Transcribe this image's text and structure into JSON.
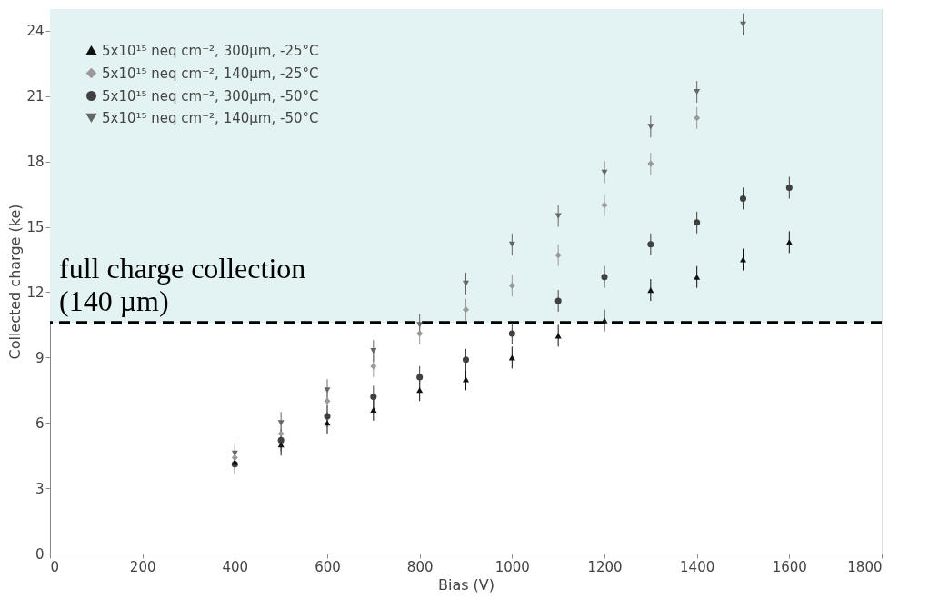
{
  "chart_data": {
    "type": "scatter",
    "xlabel": "Bias (V)",
    "ylabel": "Collected charge (ke)",
    "xlim": [
      0,
      1800
    ],
    "xticks": [
      0,
      200,
      400,
      600,
      800,
      1000,
      1200,
      1400,
      1600,
      1800
    ],
    "ylim": [
      0,
      25
    ],
    "yticks": [
      0,
      3,
      6,
      9,
      12,
      15,
      18,
      21,
      24
    ],
    "grid": false,
    "legend": "top left",
    "series": [
      {
        "name": "5x10¹⁵ neq cm⁻², 300μm, -25°C",
        "color": "#111111",
        "marker": "triangle",
        "x": [
          400,
          500,
          600,
          700,
          800,
          900,
          1000,
          1100,
          1200,
          1300,
          1400,
          1500,
          1600
        ],
        "values": [
          4.2,
          5.0,
          6.0,
          6.6,
          7.5,
          8.0,
          9.0,
          10.0,
          10.7,
          12.1,
          12.7,
          13.5,
          14.3
        ],
        "errors": [
          0.5,
          0.5,
          0.5,
          0.5,
          0.5,
          0.5,
          0.5,
          0.5,
          0.5,
          0.5,
          0.5,
          0.5,
          0.5
        ]
      },
      {
        "name": "5x10¹⁵ neq cm⁻², 140μm, -25°C",
        "color": "#9a9a9a",
        "marker": "diamond",
        "x": [
          400,
          500,
          600,
          700,
          800,
          900,
          1000,
          1100,
          1200,
          1300,
          1400
        ],
        "values": [
          4.4,
          5.5,
          7.0,
          8.6,
          10.1,
          11.2,
          12.3,
          13.7,
          16.0,
          17.9,
          20.0
        ],
        "errors": [
          0.5,
          0.5,
          0.5,
          0.5,
          0.5,
          0.5,
          0.5,
          0.5,
          0.5,
          0.5,
          0.5
        ]
      },
      {
        "name": "5x10¹⁵ neq cm⁻², 300μm, -50°C",
        "color": "#404040",
        "marker": "circle",
        "x": [
          400,
          500,
          600,
          700,
          800,
          900,
          1000,
          1100,
          1200,
          1300,
          1400,
          1500,
          1600
        ],
        "values": [
          4.1,
          5.2,
          6.3,
          7.2,
          8.1,
          8.9,
          10.1,
          11.6,
          12.7,
          14.2,
          15.2,
          16.3,
          16.8
        ],
        "errors": [
          0.5,
          0.5,
          0.5,
          0.5,
          0.5,
          0.5,
          0.5,
          0.5,
          0.5,
          0.5,
          0.5,
          0.5,
          0.5
        ]
      },
      {
        "name": "5x10¹⁵ neq cm⁻², 140μm, -50°C",
        "color": "#666666",
        "marker": "triangle-down",
        "x": [
          400,
          500,
          600,
          700,
          800,
          900,
          1000,
          1100,
          1200,
          1300,
          1400,
          1500
        ],
        "values": [
          4.6,
          6.0,
          7.5,
          9.3,
          10.5,
          12.4,
          14.2,
          15.5,
          17.5,
          19.6,
          21.2,
          24.3
        ],
        "errors": [
          0.5,
          0.5,
          0.5,
          0.5,
          0.5,
          0.5,
          0.5,
          0.5,
          0.5,
          0.5,
          0.5,
          0.5
        ]
      }
    ],
    "ref_lines": [
      {
        "axis": "y",
        "value": 10.6,
        "label": "full charge collection\n(140 µm)",
        "color": "#000000",
        "line_style": "dashed"
      }
    ],
    "bands": [
      {
        "axis": "y",
        "from": 10.6,
        "to": 25,
        "color": "#e3f3f3"
      }
    ]
  }
}
